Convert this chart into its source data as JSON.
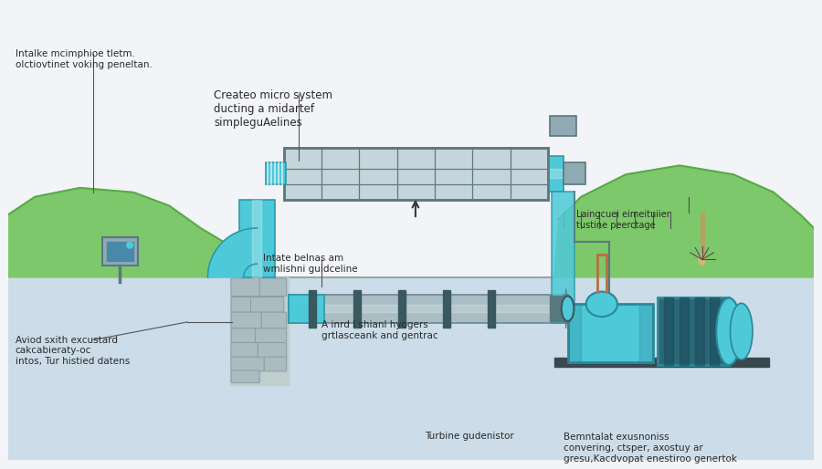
{
  "bg_color": "#f2f4f7",
  "pipe_color": "#4ec9d8",
  "pipe_color2": "#5bd2e0",
  "pipe_dark": "#2a9aaa",
  "pipe_gray": "#a8bec4",
  "pipe_gray_dark": "#6a8890",
  "stone_color": "#aabcc4",
  "stone_dark": "#8a9ea8",
  "grass_color": "#7dc86a",
  "grass_dark": "#5aaa48",
  "device_color": "#4ec9d8",
  "device_dark": "#2a8898",
  "device_mid": "#3ab0c0",
  "metal_color": "#5a7880",
  "metal_light": "#90aab4",
  "metal_dark": "#3a5860",
  "ground_color": "#dde8ee",
  "water_color": "#ccdce8",
  "filter_bg": "#c5d5dc",
  "filter_frame": "#607880",
  "line_color": "#383838",
  "text_color": "#2a2a2a",
  "white": "#ffffff",
  "title_text": "Createo micro system\nducting a midartef\nsimpleguAelines",
  "label_intake": "Intalke mcimphioe tletm.\nolctiovtinet voking peneltan.",
  "label_intake2": "Intate belnas am\nwmlishni guidceline",
  "label_penstock": "A inrd l shianl hyogers\ngrtlasceank and gentrac",
  "label_turbine": "Turbine gudenistor",
  "label_generator": "Bemntalat exusnoniss\nconvering, ctsper, axostuy ar\ngresu,Kacdvopat enestiroo genertok",
  "label_reservoir": "Laingcuei eimeituiier\ntustine peerctage",
  "label_avoid": "Aviod sxith excustard\ncakcabieraty-oc\nintos, Tur histied datens",
  "figsize": [
    9.0,
    5.14
  ],
  "dpi": 100
}
